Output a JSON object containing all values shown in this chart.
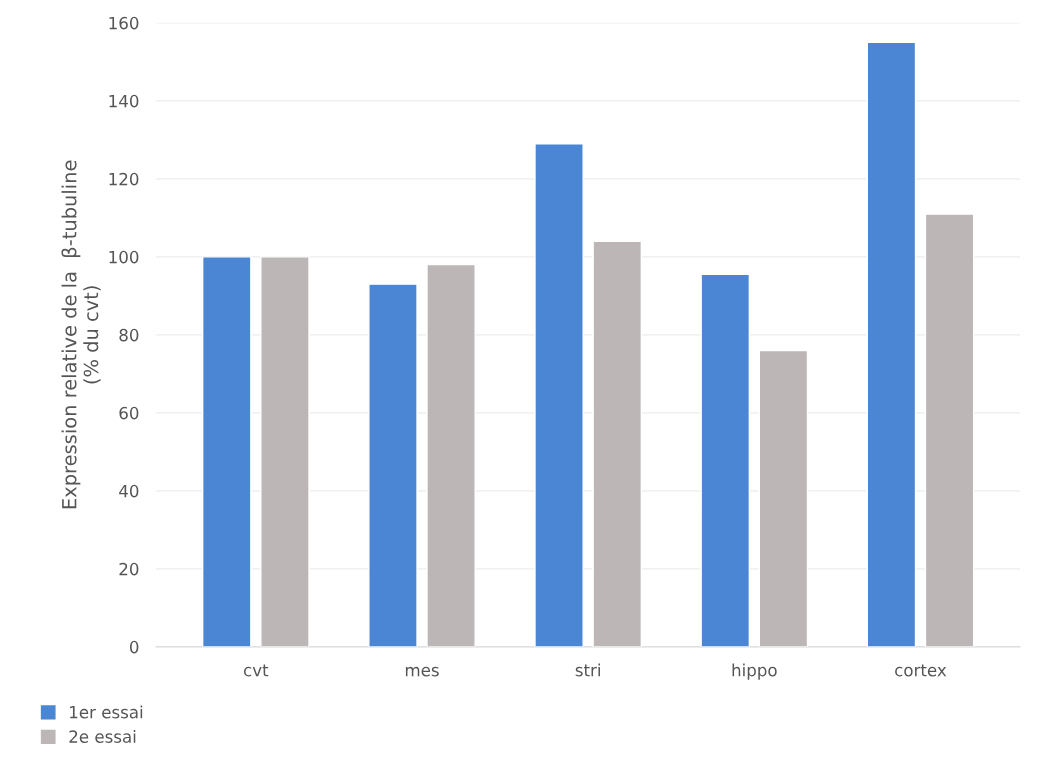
{
  "chart_data": {
    "type": "bar",
    "ylabel": "Expression relative de la  β-tubuline\n(% du cvt)",
    "categories": [
      "cvt",
      "mes",
      "stri",
      "hippo",
      "cortex"
    ],
    "series": [
      {
        "name": "1er essai",
        "color": "#4a86d4",
        "values": [
          100,
          93,
          129,
          95.5,
          155
        ]
      },
      {
        "name": "2e essai",
        "color": "#bdb6b6",
        "values": [
          100,
          98,
          104,
          76,
          111
        ]
      }
    ],
    "ylim": [
      0,
      160
    ],
    "yticks": [
      0,
      20,
      40,
      60,
      80,
      100,
      120,
      140,
      160
    ],
    "grid": "y",
    "legend": "bottom left"
  }
}
